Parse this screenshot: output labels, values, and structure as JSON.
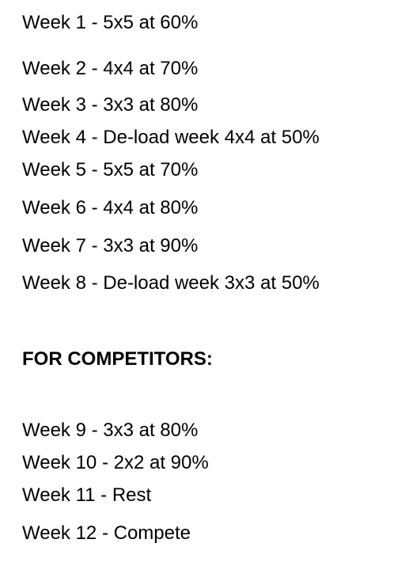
{
  "program": {
    "weeks": [
      "Week 1 - 5x5 at 60%",
      "Week 2 - 4x4 at 70%",
      "Week 3 - 3x3 at 80%",
      "Week 4 - De-load week 4x4 at 50%",
      "Week 5 - 5x5 at 70%",
      "Week 6 - 4x4 at 80%",
      "Week 7 - 3x3 at 90%",
      "Week 8 - De-load week 3x3 at 50%"
    ]
  },
  "competitors": {
    "heading": "FOR COMPETITORS:",
    "weeks": [
      "Week 9 - 3x3 at 80%",
      "Week 10 - 2x2 at 90%",
      "Week 11 - Rest",
      "Week 12 - Compete"
    ]
  }
}
